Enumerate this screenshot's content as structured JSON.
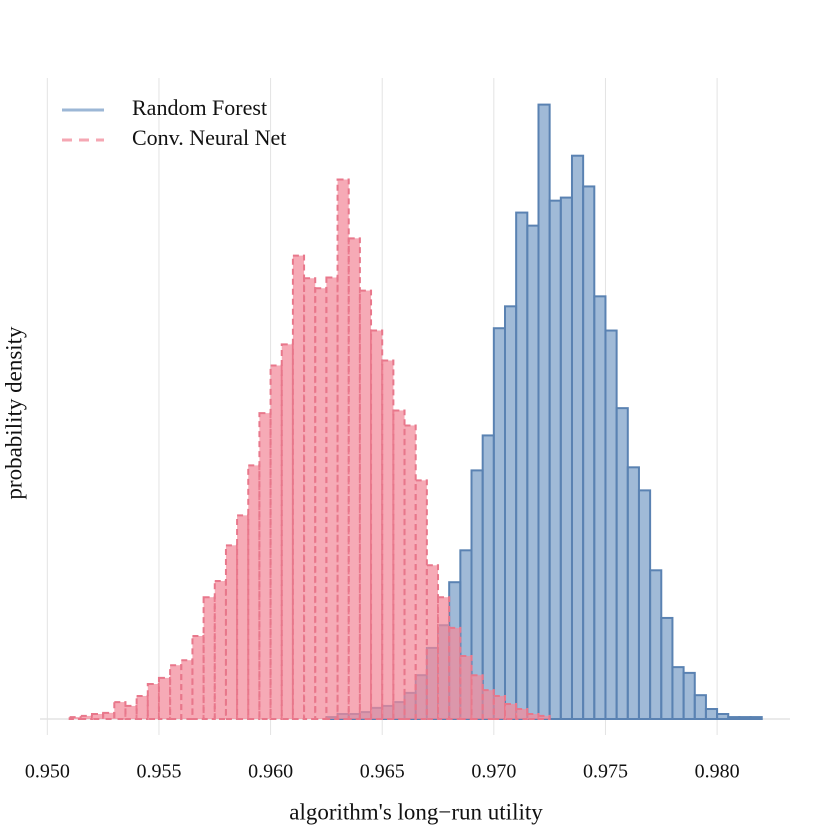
{
  "chart_data": {
    "type": "histogram",
    "xlabel": "algorithm's long−run utility",
    "ylabel": "probability density",
    "xlim": [
      0.949,
      0.9834
    ],
    "ylim": [
      0,
      165
    ],
    "xticks": [
      {
        "value": 0.95,
        "label": "0.950"
      },
      {
        "value": 0.955,
        "label": "0.955"
      },
      {
        "value": 0.96,
        "label": "0.960"
      },
      {
        "value": 0.965,
        "label": "0.965"
      },
      {
        "value": 0.97,
        "label": "0.970"
      },
      {
        "value": 0.975,
        "label": "0.975"
      },
      {
        "value": 0.98,
        "label": "0.980"
      }
    ],
    "grid": true,
    "legend": "upper left",
    "series": [
      {
        "name": "Random Forest",
        "color": "#7b9fc8",
        "edgecolor": "#5a82b2",
        "linestyle": "solid",
        "bins": [
          0.9625,
          0.963,
          0.9635,
          0.964,
          0.9645,
          0.965,
          0.9655,
          0.966,
          0.9665,
          0.967,
          0.9675,
          0.968,
          0.9685,
          0.969,
          0.9695,
          0.97,
          0.9705,
          0.971,
          0.9715,
          0.972,
          0.9725,
          0.973,
          0.9735,
          0.974,
          0.9745,
          0.975,
          0.9755,
          0.976,
          0.9765,
          0.977,
          0.9775,
          0.978,
          0.9785,
          0.979,
          0.9795,
          0.98,
          0.9805,
          0.981,
          0.9815,
          0.982
        ],
        "values": [
          0.5,
          1.3,
          1.3,
          1.8,
          2.9,
          3.4,
          4.4,
          6.8,
          11.4,
          18.5,
          24.4,
          35.6,
          43.9,
          64.7,
          73.8,
          101.7,
          107.4,
          131.8,
          128.4,
          159.9,
          134.9,
          135.7,
          146.6,
          138.6,
          110,
          101.1,
          80.9,
          65.5,
          59.5,
          38.7,
          26.3,
          13.5,
          12,
          6.2,
          2.6,
          1.3,
          0.5,
          0.5,
          0.5
        ]
      },
      {
        "name": "Conv. Neural Net",
        "color": "#f2899a",
        "edgecolor": "#e8778b",
        "linestyle": "dashed",
        "bins": [
          0.951,
          0.9515,
          0.952,
          0.9525,
          0.953,
          0.9535,
          0.954,
          0.9545,
          0.955,
          0.9555,
          0.956,
          0.9565,
          0.957,
          0.9575,
          0.958,
          0.9585,
          0.959,
          0.9595,
          0.96,
          0.9605,
          0.961,
          0.9615,
          0.962,
          0.9625,
          0.963,
          0.9635,
          0.964,
          0.9645,
          0.965,
          0.9655,
          0.966,
          0.9665,
          0.967,
          0.9675,
          0.968,
          0.9685,
          0.969,
          0.9695,
          0.97,
          0.9705,
          0.971,
          0.9715,
          0.972,
          0.9725
        ],
        "values": [
          0.5,
          0.8,
          1.3,
          1.6,
          4.4,
          3.4,
          6,
          9.1,
          10.7,
          14,
          15.3,
          21.6,
          31.7,
          35.9,
          45.2,
          53,
          66,
          79.6,
          92,
          97.5,
          120.6,
          114.7,
          112.1,
          114.9,
          140.4,
          125.1,
          111.5,
          101.1,
          93.3,
          80.3,
          76.4,
          62.1,
          40,
          31.7,
          23.7,
          16.4,
          11.4,
          7.5,
          6,
          3.9,
          2.6,
          1.3,
          0.8
        ]
      }
    ]
  }
}
